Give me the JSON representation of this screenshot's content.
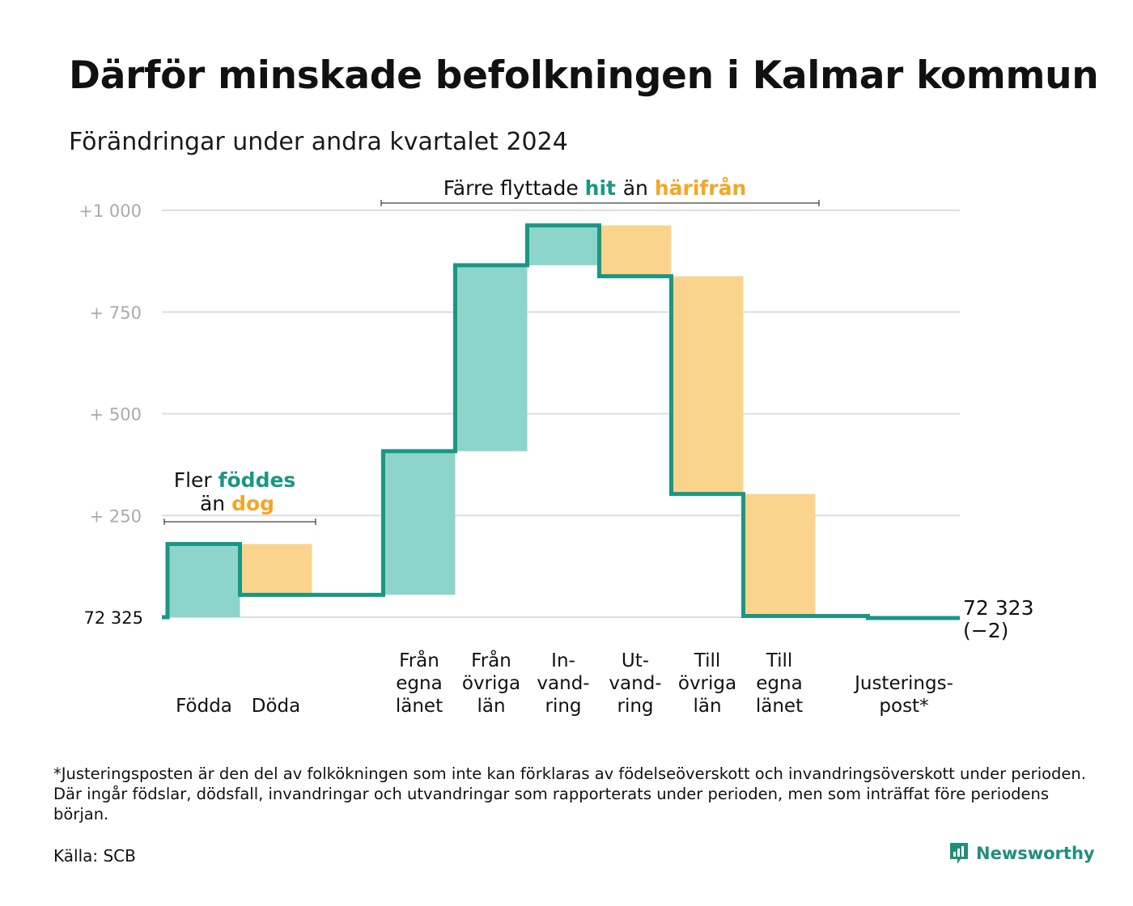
{
  "title": "Därför minskade befolkningen i Kalmar kommun",
  "subtitle": "Förändringar under andra kvartalet 2024",
  "chart_data": {
    "type": "waterfall",
    "base_label": "72  325",
    "base_value": 72325,
    "end_label_line1": "72 323",
    "end_label_line2": "(−2)",
    "end_value": 72323,
    "y_ticks": [
      {
        "value": 1000,
        "label": "+1   000"
      },
      {
        "value": 750,
        "label": "+  750"
      },
      {
        "value": 500,
        "label": "+  500"
      },
      {
        "value": 250,
        "label": "+  250"
      }
    ],
    "ylim": [
      0,
      1000
    ],
    "colors": {
      "increase": "#8dd5cb",
      "decrease": "#fad48c",
      "line": "#1a9783",
      "grid": "#dddddd",
      "teal_text": "#1a9783",
      "orange_text": "#f5a623"
    },
    "steps": [
      {
        "key": "fodda",
        "label": [
          "Födda"
        ],
        "change": 180,
        "kind": "increase"
      },
      {
        "key": "doda",
        "label": [
          "Döda"
        ],
        "change": -125,
        "kind": "decrease"
      },
      {
        "key": "fran_egna",
        "label": [
          "Från",
          "egna",
          "länet"
        ],
        "change": 353,
        "kind": "increase"
      },
      {
        "key": "fran_ovriga",
        "label": [
          "Från",
          "övriga",
          "län"
        ],
        "change": 457,
        "kind": "increase"
      },
      {
        "key": "invandring",
        "label": [
          "In-",
          "vand-",
          "ring"
        ],
        "change": 98,
        "kind": "increase"
      },
      {
        "key": "utvandring",
        "label": [
          "Ut-",
          "vand-",
          "ring"
        ],
        "change": -125,
        "kind": "decrease"
      },
      {
        "key": "till_ovriga",
        "label": [
          "Till",
          "övriga",
          "län"
        ],
        "change": -535,
        "kind": "decrease"
      },
      {
        "key": "till_egna",
        "label": [
          "Till",
          "egna",
          "länet"
        ],
        "change": -300,
        "kind": "decrease"
      },
      {
        "key": "justering",
        "label": [
          "Justerings-",
          "post*"
        ],
        "change": -5,
        "kind": "decrease"
      }
    ],
    "annotations": {
      "births": {
        "line1_prefix": "Fler ",
        "line1_highlight": "föddes",
        "line2_prefix": "än ",
        "line2_highlight": "dog"
      },
      "moves": {
        "prefix": "Färre flyttade ",
        "highlight1": "hit",
        "middle": "än ",
        "highlight2": "härifrån"
      }
    }
  },
  "footnote": "*Justeringsposten är den del av folkökningen som inte kan förklaras av födelseöverskott och invandringsöverskott under perioden. Där ingår födslar, dödsfall, invandringar och utvandringar som rapporterats under perioden, men som inträffat före periodens början.",
  "source": "Källa: SCB",
  "brand": "Newsworthy"
}
